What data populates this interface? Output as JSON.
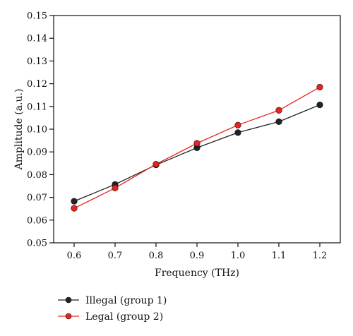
{
  "chart_data": {
    "type": "line",
    "xlabel": "Frequency (THz)",
    "ylabel": "Amplitude (a.u.)",
    "x": [
      0.6,
      0.7,
      0.8,
      0.9,
      1.0,
      1.1,
      1.2
    ],
    "x_ticks": [
      "0.6",
      "0.7",
      "0.8",
      "0.9",
      "1.0",
      "1.1",
      "1.2"
    ],
    "xlim": [
      0.55,
      1.25
    ],
    "ylim": [
      0.05,
      0.15
    ],
    "y_ticks": [
      "0.05",
      "0.06",
      "0.07",
      "0.08",
      "0.09",
      "0.10",
      "0.11",
      "0.12",
      "0.13",
      "0.14",
      "0.15"
    ],
    "grid": false,
    "legend_position": "bottom-left",
    "series": [
      {
        "name": "Illegal (group 1)",
        "color": "#222222",
        "marker": "filled-circle",
        "values": [
          0.0683,
          0.0757,
          0.0843,
          0.0918,
          0.0985,
          0.1033,
          0.1107
        ]
      },
      {
        "name": "Legal (group 2)",
        "color": "#e8221f",
        "marker": "filled-circle",
        "values": [
          0.0652,
          0.0741,
          0.0846,
          0.0938,
          0.1018,
          0.1083,
          0.1185
        ]
      }
    ]
  }
}
